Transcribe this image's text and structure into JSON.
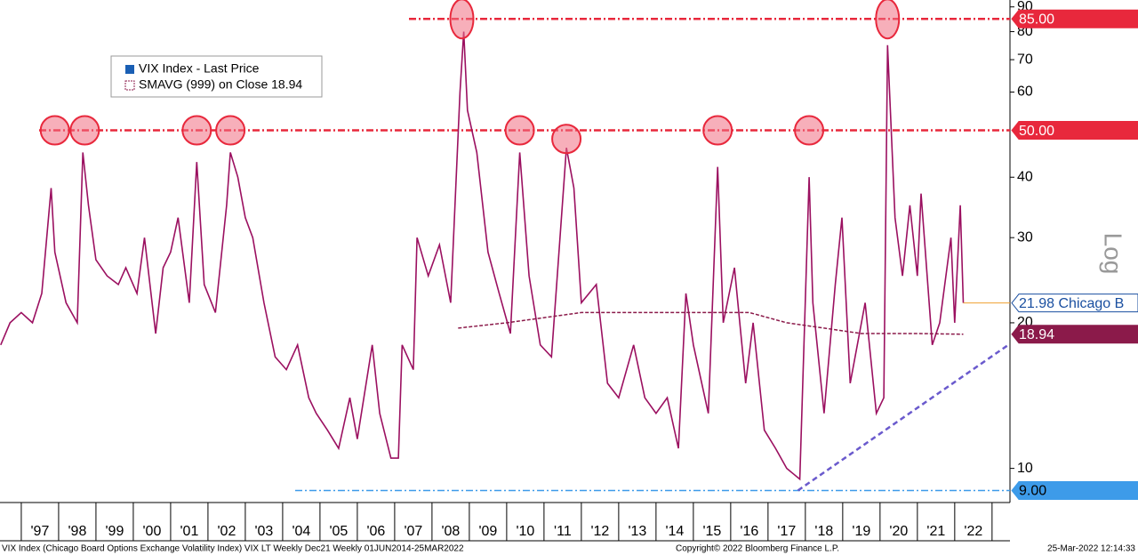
{
  "chart_data": {
    "type": "line",
    "log_scale": true,
    "xlim": [
      1996.43,
      2023.48
    ],
    "ylim": [
      8.5,
      93
    ],
    "xticks": [
      {
        "value": 1997.5,
        "label": "'97"
      },
      {
        "value": 1998.5,
        "label": "'98"
      },
      {
        "value": 1999.5,
        "label": "'99"
      },
      {
        "value": 2000.5,
        "label": "'00"
      },
      {
        "value": 2001.5,
        "label": "'01"
      },
      {
        "value": 2002.5,
        "label": "'02"
      },
      {
        "value": 2003.5,
        "label": "'03"
      },
      {
        "value": 2004.5,
        "label": "'04"
      },
      {
        "value": 2005.5,
        "label": "'05"
      },
      {
        "value": 2006.5,
        "label": "'06"
      },
      {
        "value": 2007.5,
        "label": "'07"
      },
      {
        "value": 2008.5,
        "label": "'08"
      },
      {
        "value": 2009.5,
        "label": "'09"
      },
      {
        "value": 2010.5,
        "label": "'10"
      },
      {
        "value": 2011.5,
        "label": "'11"
      },
      {
        "value": 2012.5,
        "label": "'12"
      },
      {
        "value": 2013.5,
        "label": "'13"
      },
      {
        "value": 2014.5,
        "label": "'14"
      },
      {
        "value": 2015.5,
        "label": "'15"
      },
      {
        "value": 2016.5,
        "label": "'16"
      },
      {
        "value": 2017.5,
        "label": "'17"
      },
      {
        "value": 2018.5,
        "label": "'18"
      },
      {
        "value": 2019.5,
        "label": "'19"
      },
      {
        "value": 2020.5,
        "label": "'20"
      },
      {
        "value": 2021.5,
        "label": "'21"
      },
      {
        "value": 2022.5,
        "label": "'22"
      }
    ],
    "yticks": [
      10,
      20,
      30,
      40,
      60,
      70,
      80,
      90
    ],
    "y_axis_label": "Log",
    "series": [
      {
        "name": "VIX Index - Last Price",
        "color": "#9b1060",
        "x": [
          1996.45,
          1996.7,
          1997.0,
          1997.3,
          1997.55,
          1997.8,
          1997.9,
          1998.2,
          1998.5,
          1998.65,
          1998.8,
          1999.0,
          1999.3,
          1999.6,
          1999.8,
          2000.1,
          2000.3,
          2000.6,
          2000.8,
          2001.0,
          2001.2,
          2001.5,
          2001.7,
          2001.9,
          2002.2,
          2002.5,
          2002.6,
          2002.8,
          2003.0,
          2003.2,
          2003.5,
          2003.8,
          2004.1,
          2004.4,
          2004.7,
          2004.9,
          2005.2,
          2005.5,
          2005.8,
          2006.0,
          2006.4,
          2006.6,
          2006.9,
          2007.1,
          2007.2,
          2007.5,
          2007.6,
          2007.9,
          2008.2,
          2008.5,
          2008.75,
          2008.85,
          2008.95,
          2009.2,
          2009.5,
          2009.8,
          2010.1,
          2010.35,
          2010.6,
          2010.9,
          2011.2,
          2011.6,
          2011.8,
          2012.0,
          2012.4,
          2012.7,
          2013.0,
          2013.4,
          2013.7,
          2014.0,
          2014.3,
          2014.6,
          2014.8,
          2015.0,
          2015.4,
          2015.65,
          2015.8,
          2016.1,
          2016.4,
          2016.6,
          2016.9,
          2017.2,
          2017.5,
          2017.85,
          2018.1,
          2018.2,
          2018.5,
          2018.8,
          2018.98,
          2019.2,
          2019.6,
          2019.9,
          2020.1,
          2020.2,
          2020.4,
          2020.6,
          2020.8,
          2021.0,
          2021.1,
          2021.4,
          2021.6,
          2021.9,
          2022.0,
          2022.15,
          2022.23
        ],
        "values": [
          18,
          20,
          21,
          20,
          23,
          38,
          28,
          22,
          20,
          45,
          35,
          27,
          25,
          24,
          26,
          23,
          30,
          19,
          26,
          28,
          33,
          22,
          43,
          24,
          21,
          35,
          45,
          40,
          33,
          30,
          22,
          17,
          16,
          18,
          14,
          13,
          12,
          11,
          14,
          11.5,
          18,
          13,
          10.5,
          10.5,
          18,
          16,
          30,
          25,
          29,
          22,
          60,
          80,
          55,
          45,
          28,
          23,
          19,
          45,
          25,
          18,
          17,
          46,
          38,
          22,
          24,
          15,
          14,
          18,
          14,
          13,
          14,
          11,
          23,
          18,
          13,
          42,
          20,
          26,
          15,
          20,
          12,
          11,
          10,
          9.5,
          40,
          22,
          13,
          24,
          33,
          15,
          22,
          13,
          14,
          75,
          33,
          25,
          35,
          25,
          37,
          18,
          20,
          30,
          20,
          35,
          21.98
        ]
      },
      {
        "name": "SMAVG (999)  on Close 18.94",
        "color": "#8b1a4a",
        "x": [
          2008.7,
          2010.0,
          2012.0,
          2015.0,
          2016.5,
          2017.5,
          2018.5,
          2019.5,
          2021.0,
          2022.23
        ],
        "values": [
          19.5,
          20,
          21,
          21,
          21,
          20,
          19.5,
          19,
          19,
          18.94
        ]
      }
    ],
    "levels": [
      {
        "value": 85,
        "label": "85.00",
        "color": "#e8283c"
      },
      {
        "value": 50,
        "label": "50.00",
        "color": "#e8283c"
      },
      {
        "value": 9,
        "label": "9.00",
        "color": "#3d9be9"
      }
    ],
    "last_labels": [
      {
        "value": 21.98,
        "label": "21.98 Chicago B",
        "color": "#ffffff"
      },
      {
        "value": 18.94,
        "label": "18.94",
        "color": "#8b1a4a"
      }
    ],
    "trendline": {
      "x": [
        2017.8,
        2023.48
      ],
      "values": [
        9,
        18.1
      ],
      "color": "#6a5acd"
    },
    "highlights": {
      "x": [
        1997.9,
        1998.7,
        2001.7,
        2002.6,
        2008.8,
        2010.35,
        2011.6,
        2015.65,
        2018.1,
        2020.2
      ],
      "values": [
        50,
        50,
        50,
        50,
        85,
        50,
        48,
        50,
        50,
        85
      ]
    },
    "footer_left": "VIX Index (Chicago Board Options Exchange Volatility Index) VIX LT Weekly Dec21  Weekly 01JUN2014-25MAR2022",
    "footer_center": "Copyright© 2022 Bloomberg Finance L.P.",
    "footer_right": "25-Mar-2022 12:14:33"
  }
}
